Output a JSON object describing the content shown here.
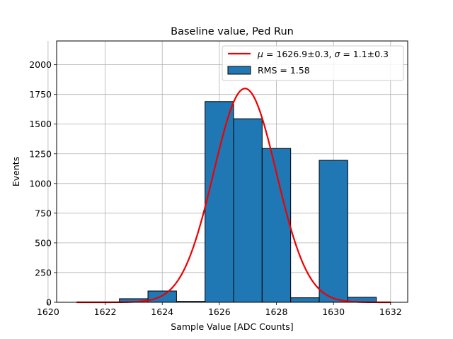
{
  "chart_data": {
    "type": "bar",
    "title": "Baseline value, Ped Run",
    "xlabel": "Sample Value [ADC Counts]",
    "ylabel": "Events",
    "xlim": [
      1620.3,
      1632.6
    ],
    "ylim": [
      0,
      2200
    ],
    "xticks": [
      1620,
      1622,
      1624,
      1626,
      1628,
      1630,
      1632
    ],
    "yticks": [
      0,
      250,
      500,
      750,
      1000,
      1250,
      1500,
      1750,
      2000
    ],
    "grid": true,
    "legend_position": "top-right",
    "histogram": {
      "name": "RMS = 1.58",
      "color": "#1f77b4",
      "bins": [
        {
          "left": 1620.5,
          "right": 1621.5,
          "count": 0
        },
        {
          "left": 1621.5,
          "right": 1622.5,
          "count": 0
        },
        {
          "left": 1622.5,
          "right": 1623.5,
          "count": 30
        },
        {
          "left": 1623.5,
          "right": 1624.5,
          "count": 95
        },
        {
          "left": 1624.5,
          "right": 1625.5,
          "count": 8
        },
        {
          "left": 1625.5,
          "right": 1626.5,
          "count": 1690
        },
        {
          "left": 1626.5,
          "right": 1627.5,
          "count": 1545
        },
        {
          "left": 1627.5,
          "right": 1628.5,
          "count": 1295
        },
        {
          "left": 1628.5,
          "right": 1629.5,
          "count": 38
        },
        {
          "left": 1629.5,
          "right": 1630.5,
          "count": 1195
        },
        {
          "left": 1630.5,
          "right": 1631.5,
          "count": 42
        }
      ]
    },
    "fit": {
      "color": "#ee0000",
      "mu": 1626.9,
      "sigma": 1.1,
      "amplitude": 1800,
      "x_range": [
        1621,
        1632
      ],
      "legend_parts": {
        "mu_symbol": "μ",
        "eq1": " = 1626.9±0.3, ",
        "sigma_symbol": "σ",
        "eq2": " = 1.1±0.3"
      }
    }
  }
}
